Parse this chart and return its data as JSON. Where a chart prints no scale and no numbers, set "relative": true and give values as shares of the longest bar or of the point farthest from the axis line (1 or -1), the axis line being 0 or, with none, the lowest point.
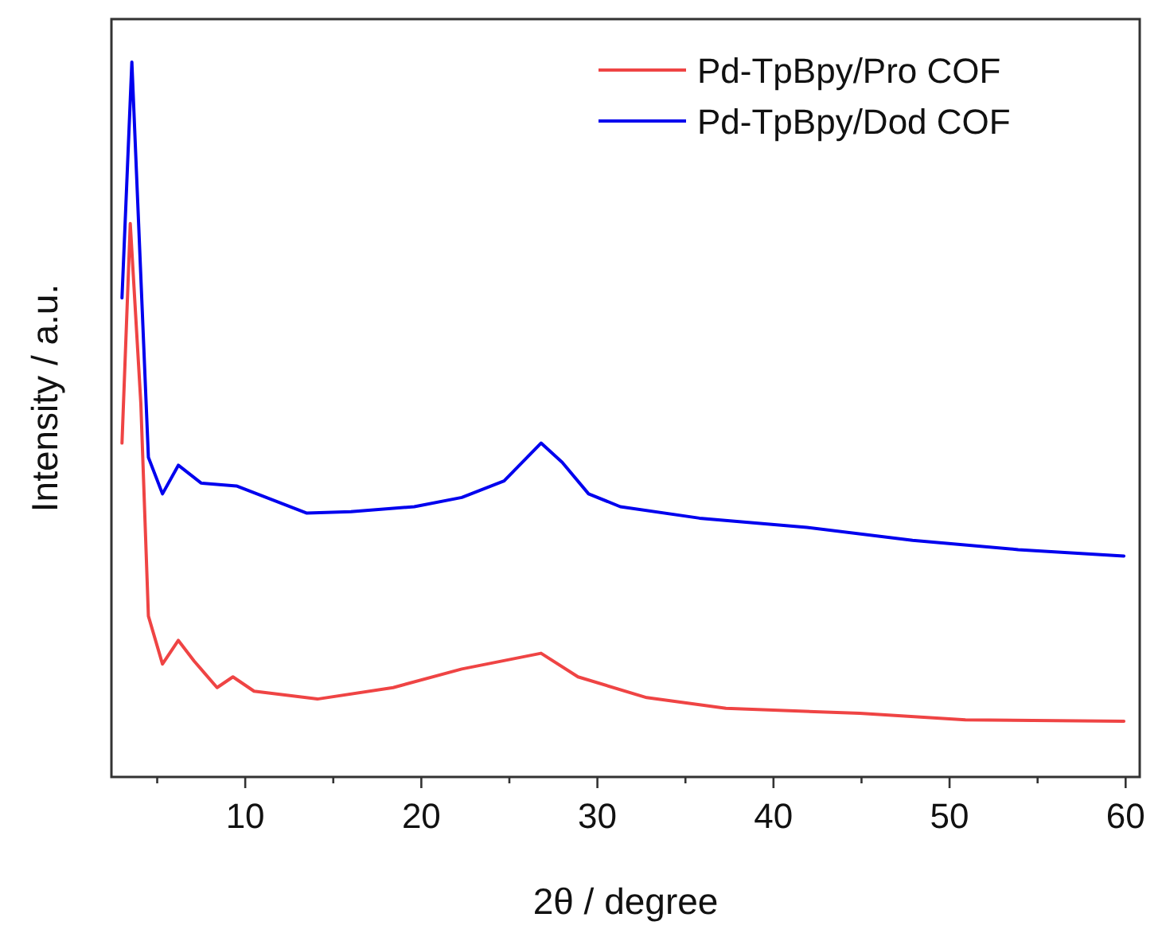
{
  "chart_data": {
    "type": "line",
    "xlabel": "2θ / degree",
    "ylabel": "Intensity / a.u.",
    "relative": true,
    "xlim": [
      2.4,
      60.8
    ],
    "xticks": [
      {
        "value": 5,
        "label": null
      },
      10,
      {
        "value": 15,
        "label": null
      },
      20,
      {
        "value": 25,
        "label": null
      },
      30,
      {
        "value": 35,
        "label": null
      },
      40,
      {
        "value": 45,
        "label": null
      },
      50,
      {
        "value": 55,
        "label": null
      },
      60
    ],
    "legend": "top right",
    "tick_labels": "x",
    "line_style": "solid",
    "series": [
      {
        "name": "Pd-TpBpy/Pro COF",
        "color": "#ef4444",
        "x": [
          3.0,
          3.47,
          4.07,
          4.5,
          5.3,
          6.2,
          7.1,
          8.4,
          9.3,
          10.5,
          14.1,
          18.4,
          22.3,
          26.8,
          28.9,
          32.8,
          37.3,
          44.9,
          50.9,
          59.9
        ],
        "values": [
          0.467,
          0.774,
          0.523,
          0.225,
          0.158,
          0.191,
          0.162,
          0.125,
          0.14,
          0.12,
          0.109,
          0.125,
          0.151,
          0.173,
          0.14,
          0.111,
          0.096,
          0.089,
          0.08,
          0.078
        ]
      },
      {
        "name": "Pd-TpBpy/Dod COF",
        "color": "#0000ee",
        "x": [
          3.0,
          3.56,
          4.5,
          5.3,
          6.2,
          7.5,
          9.5,
          13.5,
          16,
          19.6,
          22.3,
          24.7,
          26.8,
          28,
          29.5,
          31.3,
          35.8,
          41.9,
          47.9,
          53.9,
          59.9
        ],
        "values": [
          0.67,
          1,
          0.447,
          0.396,
          0.436,
          0.411,
          0.407,
          0.369,
          0.371,
          0.378,
          0.391,
          0.414,
          0.467,
          0.44,
          0.396,
          0.378,
          0.362,
          0.349,
          0.331,
          0.318,
          0.309
        ]
      }
    ]
  }
}
